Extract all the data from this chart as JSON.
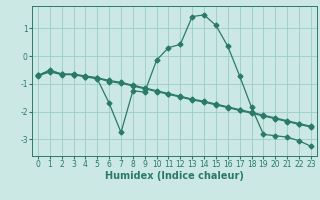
{
  "xlabel": "Humidex (Indice chaleur)",
  "bg_color": "#cce8e4",
  "grid_color": "#99cccc",
  "line_color": "#2a7a6a",
  "xlim": [
    -0.5,
    23.5
  ],
  "ylim": [
    -3.6,
    1.8
  ],
  "xticks": [
    0,
    1,
    2,
    3,
    4,
    5,
    6,
    7,
    8,
    9,
    10,
    11,
    12,
    13,
    14,
    15,
    16,
    17,
    18,
    19,
    20,
    21,
    22,
    23
  ],
  "yticks": [
    -3,
    -2,
    -1,
    0,
    1
  ],
  "curve1_x": [
    0,
    1,
    2,
    3,
    4,
    5,
    6,
    7,
    8,
    9,
    10,
    11,
    12,
    13,
    14,
    15,
    16,
    17,
    18,
    19,
    20,
    21,
    22,
    23
  ],
  "curve1_y": [
    -0.7,
    -0.55,
    -0.65,
    -0.65,
    -0.72,
    -0.78,
    -0.88,
    -0.95,
    -1.05,
    -1.15,
    -1.25,
    -1.35,
    -1.45,
    -1.55,
    -1.63,
    -1.73,
    -1.83,
    -1.93,
    -2.03,
    -2.13,
    -2.23,
    -2.33,
    -2.43,
    -2.53
  ],
  "curve2_x": [
    0,
    1,
    2,
    3,
    4,
    5,
    6,
    7,
    8,
    9,
    10,
    11,
    12,
    13,
    14,
    15,
    16,
    17,
    18,
    19,
    20,
    21,
    22,
    23
  ],
  "curve2_y": [
    -0.72,
    -0.57,
    -0.67,
    -0.67,
    -0.74,
    -0.8,
    -0.92,
    -0.98,
    -1.08,
    -1.18,
    -1.28,
    -1.38,
    -1.48,
    -1.58,
    -1.66,
    -1.76,
    -1.86,
    -1.96,
    -2.06,
    -2.16,
    -2.26,
    -2.36,
    -2.46,
    -2.56
  ],
  "curve3_x": [
    0,
    1,
    2,
    3,
    4,
    5,
    6,
    7,
    8,
    9,
    10,
    11,
    12,
    13,
    14,
    15,
    16,
    17,
    18,
    19,
    20,
    21,
    22,
    23
  ],
  "curve3_y": [
    -0.7,
    -0.5,
    -0.65,
    -0.67,
    -0.75,
    -0.82,
    -1.7,
    -2.75,
    -1.25,
    -1.3,
    -0.15,
    0.3,
    0.42,
    1.42,
    1.48,
    1.1,
    0.35,
    -0.72,
    -1.85,
    -2.82,
    -2.87,
    -2.92,
    -3.05,
    -3.25
  ],
  "marker": "D",
  "markersize": 2.5,
  "linewidth": 0.9,
  "tick_fontsize": 5.5,
  "xlabel_fontsize": 7
}
